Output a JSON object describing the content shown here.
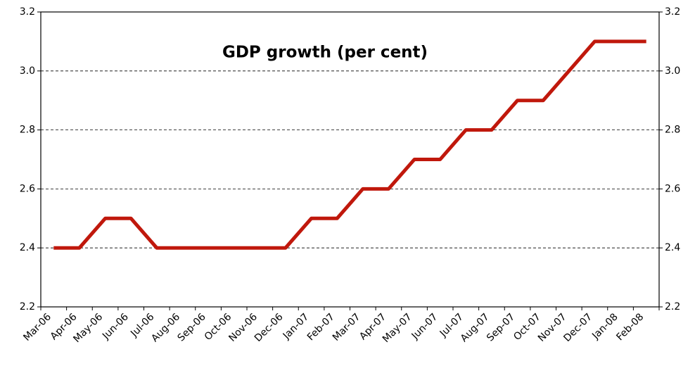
{
  "chart_data": {
    "type": "line",
    "title": "GDP growth (per cent)",
    "categories": [
      "Mar-06",
      "Apr-06",
      "May-06",
      "Jun-06",
      "Jul-06",
      "Aug-06",
      "Sep-06",
      "Oct-06",
      "Nov-06",
      "Dec-06",
      "Jan-07",
      "Feb-07",
      "Mar-07",
      "Apr-07",
      "May-07",
      "Jun-07",
      "Jul-07",
      "Aug-07",
      "Sep-07",
      "Oct-07",
      "Nov-07",
      "Dec-07",
      "Jan-08",
      "Feb-08"
    ],
    "values": [
      2.4,
      2.4,
      2.5,
      2.5,
      2.4,
      2.4,
      2.4,
      2.4,
      2.4,
      2.4,
      2.5,
      2.5,
      2.6,
      2.6,
      2.7,
      2.7,
      2.8,
      2.8,
      2.9,
      2.9,
      3.0,
      3.1,
      3.1,
      3.1
    ],
    "color": "#c0180c",
    "ylim": [
      2.2,
      3.2
    ],
    "yticks": [
      2.2,
      2.4,
      2.6,
      2.8,
      {
        "value": 3,
        "label": "3.0"
      },
      3.2
    ],
    "y2lim": [
      2.2,
      3.2
    ],
    "y2ticks": [
      2.2,
      2.4,
      2.6,
      2.8,
      {
        "value": 3,
        "label": "3.0"
      },
      3.2
    ],
    "grid": true
  }
}
